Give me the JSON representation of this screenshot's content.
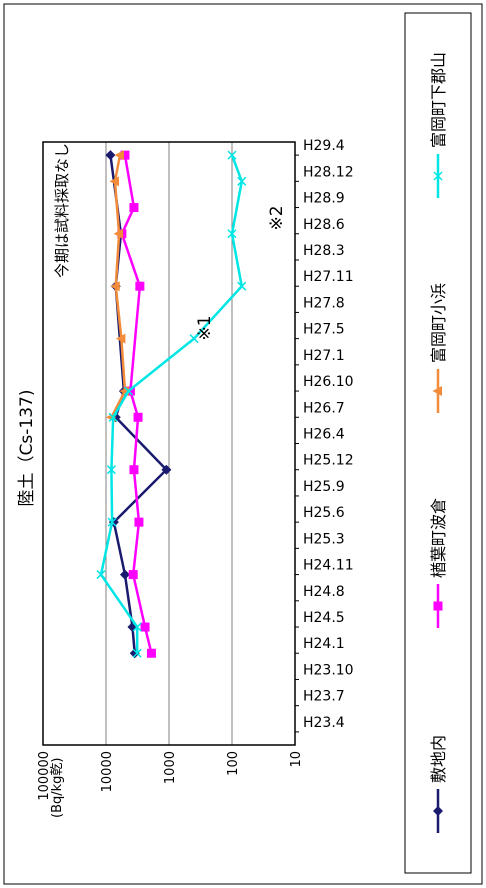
{
  "chart_data": {
    "type": "line",
    "title": "陸土（Cs-137)",
    "ylabel": "(Bq/kg乾)",
    "yscale": "log",
    "ylim": [
      10,
      100000
    ],
    "ytick_labels": [
      "10",
      "100",
      "1000",
      "10000",
      "100000"
    ],
    "categories": [
      "H23.4",
      "H23.7",
      "H23.10",
      "H24.1",
      "H24.5",
      "H24.8",
      "H24.11",
      "H25.3",
      "H25.6",
      "H25.9",
      "H25.12",
      "H26.4",
      "H26.7",
      "H26.10",
      "H27.1",
      "H27.5",
      "H27.8",
      "H27.11",
      "H28.3",
      "H28.6",
      "H28.9",
      "H28.12",
      "H29.4"
    ],
    "series": [
      {
        "name": "敷地内",
        "color": "#1a1a6e",
        "marker": "diamond",
        "values": [
          null,
          null,
          null,
          3500,
          3800,
          null,
          5000,
          null,
          7500,
          null,
          1100,
          null,
          7000,
          5200,
          null,
          null,
          null,
          7000,
          null,
          5800,
          null,
          null,
          8500
        ]
      },
      {
        "name": "楢葉町波倉",
        "color": "#ff00ff",
        "marker": "square",
        "values": [
          null,
          null,
          null,
          1900,
          2400,
          null,
          3700,
          null,
          3000,
          null,
          3600,
          null,
          3100,
          4100,
          null,
          null,
          null,
          2900,
          null,
          5600,
          3600,
          null,
          5000
        ]
      },
      {
        "name": "富岡町小浜",
        "color": "#f28c3a",
        "marker": "triangle",
        "values": [
          null,
          null,
          null,
          null,
          null,
          null,
          null,
          null,
          null,
          null,
          null,
          null,
          8200,
          5000,
          null,
          5700,
          null,
          7000,
          null,
          6200,
          null,
          7200,
          6000
        ]
      },
      {
        "name": "富岡町下郡山",
        "color": "#00e5e5",
        "marker": "x",
        "values": [
          null,
          null,
          null,
          3200,
          3200,
          null,
          12000,
          null,
          8000,
          null,
          8200,
          null,
          7700,
          4400,
          null,
          400,
          null,
          70,
          null,
          100,
          null,
          70,
          100
        ]
      }
    ],
    "annotations": [
      "※1",
      "※2",
      "今期は試料採取なし"
    ],
    "grid": true,
    "legend_position": "bottom"
  }
}
